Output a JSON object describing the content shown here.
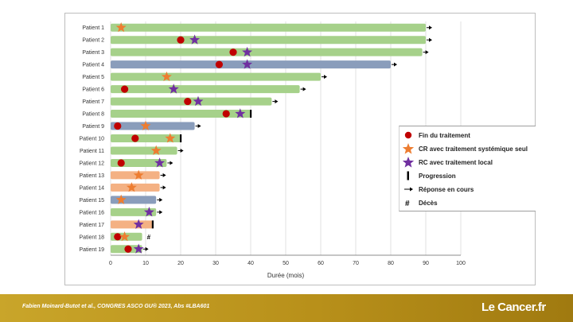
{
  "chart_data": {
    "type": "bar",
    "orientation": "horizontal",
    "xlabel": "Durée (mois)",
    "xlim": [
      0,
      100
    ],
    "xticks": [
      0,
      10,
      20,
      30,
      40,
      50,
      60,
      70,
      80,
      90,
      100
    ],
    "grid": true,
    "legend_position": "right",
    "colors": {
      "green": "#a6d18a",
      "blue": "#8a9dbb",
      "orange": "#f4b183",
      "red_dot": "#c00000",
      "orange_star": "#ed7d31",
      "purple_star": "#7030a0"
    },
    "patients": [
      {
        "label": "Patient 1",
        "duration": 90,
        "color": "green",
        "fin": null,
        "cr": 3,
        "rc": null,
        "end": "arrow"
      },
      {
        "label": "Patient 2",
        "duration": 90,
        "color": "green",
        "fin": 20,
        "cr": null,
        "rc": 24,
        "end": "arrow"
      },
      {
        "label": "Patient 3",
        "duration": 89,
        "color": "green",
        "fin": 35,
        "cr": null,
        "rc": 39,
        "end": "arrow"
      },
      {
        "label": "Patient 4",
        "duration": 80,
        "color": "blue",
        "fin": 31,
        "cr": null,
        "rc": 39,
        "end": "arrow"
      },
      {
        "label": "Patient 5",
        "duration": 60,
        "color": "green",
        "fin": null,
        "cr": 16,
        "rc": null,
        "end": "arrow"
      },
      {
        "label": "Patient 6",
        "duration": 54,
        "color": "green",
        "fin": 4,
        "cr": null,
        "rc": 18,
        "end": "arrow"
      },
      {
        "label": "Patient 7",
        "duration": 46,
        "color": "green",
        "fin": 22,
        "cr": null,
        "rc": 25,
        "end": "arrow"
      },
      {
        "label": "Patient 8",
        "duration": 40,
        "color": "green",
        "fin": 33,
        "cr": null,
        "rc": 37,
        "end": "progression"
      },
      {
        "label": "Patient 9",
        "duration": 24,
        "color": "blue",
        "fin": 2,
        "cr": 10,
        "rc": null,
        "end": "arrow"
      },
      {
        "label": "Patient 10",
        "duration": 20,
        "color": "green",
        "fin": 7,
        "cr": 17,
        "rc": null,
        "end": "progression"
      },
      {
        "label": "Patient 11",
        "duration": 19,
        "color": "green",
        "fin": null,
        "cr": 13,
        "rc": null,
        "end": "arrow"
      },
      {
        "label": "Patient 12",
        "duration": 16,
        "color": "green",
        "fin": 3,
        "cr": null,
        "rc": 14,
        "end": "arrow"
      },
      {
        "label": "Patient 13",
        "duration": 14,
        "color": "orange",
        "fin": null,
        "cr": 8,
        "rc": null,
        "end": "arrow"
      },
      {
        "label": "Patient 14",
        "duration": 14,
        "color": "orange",
        "fin": null,
        "cr": 6,
        "rc": null,
        "end": "arrow"
      },
      {
        "label": "Patient 15",
        "duration": 13,
        "color": "blue",
        "fin": null,
        "cr": 3,
        "rc": null,
        "end": "arrow"
      },
      {
        "label": "Patient 16",
        "duration": 13,
        "color": "green",
        "fin": null,
        "cr": null,
        "rc": 11,
        "end": "arrow"
      },
      {
        "label": "Patient 17",
        "duration": 12,
        "color": "orange",
        "fin": null,
        "cr": null,
        "rc": 8,
        "end": "progression"
      },
      {
        "label": "Patient 18",
        "duration": 9,
        "color": "green",
        "fin": 2,
        "cr": 4,
        "rc": null,
        "end": "death"
      },
      {
        "label": "Patient 19",
        "duration": 9,
        "color": "green",
        "fin": 5,
        "cr": null,
        "rc": 8,
        "end": "arrow"
      }
    ],
    "legend": [
      {
        "symbol": "red-dot",
        "label": "Fin du traitement"
      },
      {
        "symbol": "orange-star",
        "label": "CR avec traitement systémique seul"
      },
      {
        "symbol": "purple-star",
        "label": "RC avec traitement local"
      },
      {
        "symbol": "progression",
        "label": "Progression"
      },
      {
        "symbol": "arrow",
        "label": "Réponse en cours"
      },
      {
        "symbol": "death",
        "label": "Décès"
      }
    ],
    "death_symbol": "#"
  },
  "footer": {
    "citation": "Fabien Moinard-Butot et al., CONGRES ASCO GU® 2023, Abs #LBA601",
    "logo": "Le Cancer.fr"
  }
}
